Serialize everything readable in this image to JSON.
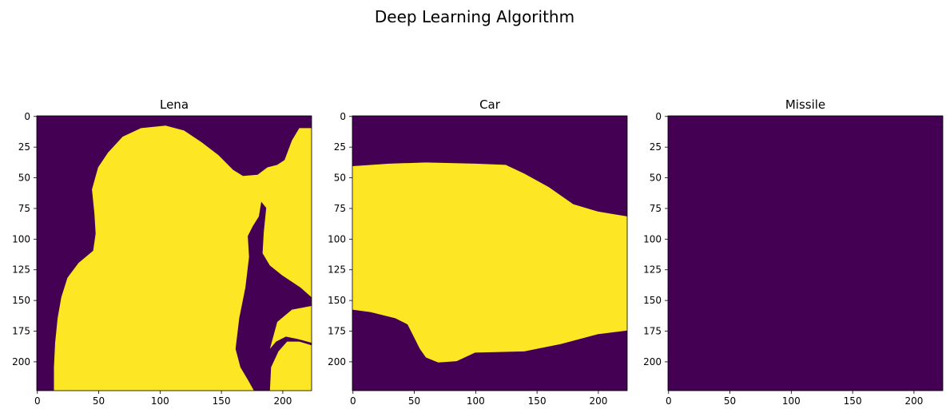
{
  "figure": {
    "title": "Deep Learning Algorithm"
  },
  "colors": {
    "background": "#440154",
    "foreground": "#fde725"
  },
  "chart_data": [
    {
      "type": "heatmap",
      "title": "Lena",
      "image_size": [
        224,
        224
      ],
      "xlim": [
        0,
        223
      ],
      "ylim": [
        223,
        0
      ],
      "xticks": [
        0,
        50,
        100,
        150,
        200
      ],
      "yticks": [
        0,
        25,
        50,
        75,
        100,
        125,
        150,
        175,
        200
      ],
      "values_present": [
        0,
        1
      ],
      "regions": [
        {
          "value": 1,
          "polygon": [
            [
              14,
              224
            ],
            [
              14,
              205
            ],
            [
              15,
              185
            ],
            [
              17,
              165
            ],
            [
              20,
              148
            ],
            [
              25,
              132
            ],
            [
              34,
              120
            ],
            [
              46,
              110
            ],
            [
              48,
              96
            ],
            [
              47,
              80
            ],
            [
              45,
              60
            ],
            [
              50,
              42
            ],
            [
              58,
              30
            ],
            [
              70,
              17
            ],
            [
              85,
              10
            ],
            [
              105,
              8
            ],
            [
              120,
              12
            ],
            [
              135,
              22
            ],
            [
              148,
              32
            ],
            [
              160,
              44
            ],
            [
              168,
              49
            ],
            [
              180,
              48
            ],
            [
              188,
              42
            ],
            [
              196,
              40
            ],
            [
              202,
              36
            ],
            [
              208,
              20
            ],
            [
              214,
              10
            ],
            [
              224,
              10
            ],
            [
              224,
              148
            ],
            [
              215,
              140
            ],
            [
              200,
              130
            ],
            [
              190,
              122
            ],
            [
              184,
              112
            ],
            [
              185,
              95
            ],
            [
              187,
              75
            ],
            [
              183,
              70
            ],
            [
              181,
              82
            ],
            [
              176,
              90
            ],
            [
              172,
              98
            ],
            [
              173,
              115
            ],
            [
              170,
              140
            ],
            [
              165,
              165
            ],
            [
              162,
              190
            ],
            [
              166,
              205
            ],
            [
              172,
              215
            ],
            [
              177,
              224
            ]
          ]
        },
        {
          "value": 1,
          "polygon": [
            [
              190,
              224
            ],
            [
              191,
              205
            ],
            [
              197,
              192
            ],
            [
              204,
              184
            ],
            [
              214,
              184
            ],
            [
              224,
              187
            ],
            [
              224,
              224
            ]
          ]
        },
        {
          "value": 1,
          "polygon": [
            [
              190,
              190
            ],
            [
              196,
              168
            ],
            [
              208,
              158
            ],
            [
              224,
              155
            ],
            [
              224,
              185
            ],
            [
              213,
              182
            ],
            [
              203,
              180
            ],
            [
              195,
              184
            ]
          ]
        }
      ]
    },
    {
      "type": "heatmap",
      "title": "Car",
      "image_size": [
        224,
        224
      ],
      "xlim": [
        0,
        223
      ],
      "ylim": [
        223,
        0
      ],
      "xticks": [
        0,
        50,
        100,
        150,
        200
      ],
      "yticks": [
        0,
        25,
        50,
        75,
        100,
        125,
        150,
        175,
        200
      ],
      "values_present": [
        0,
        1
      ],
      "regions": [
        {
          "value": 1,
          "polygon": [
            [
              0,
              41
            ],
            [
              30,
              39
            ],
            [
              60,
              38
            ],
            [
              100,
              39
            ],
            [
              125,
              40
            ],
            [
              140,
              47
            ],
            [
              160,
              58
            ],
            [
              180,
              72
            ],
            [
              200,
              78
            ],
            [
              224,
              82
            ],
            [
              224,
              175
            ],
            [
              200,
              178
            ],
            [
              170,
              186
            ],
            [
              140,
              192
            ],
            [
              100,
              193
            ],
            [
              85,
              200
            ],
            [
              70,
              201
            ],
            [
              60,
              197
            ],
            [
              55,
              190
            ],
            [
              50,
              180
            ],
            [
              45,
              170
            ],
            [
              35,
              165
            ],
            [
              15,
              160
            ],
            [
              0,
              158
            ]
          ]
        }
      ]
    },
    {
      "type": "heatmap",
      "title": "Missile",
      "image_size": [
        224,
        224
      ],
      "xlim": [
        0,
        223
      ],
      "ylim": [
        223,
        0
      ],
      "xticks": [
        0,
        50,
        100,
        150,
        200
      ],
      "yticks": [
        0,
        25,
        50,
        75,
        100,
        125,
        150,
        175,
        200
      ],
      "values_present": [
        0
      ],
      "regions": []
    }
  ]
}
